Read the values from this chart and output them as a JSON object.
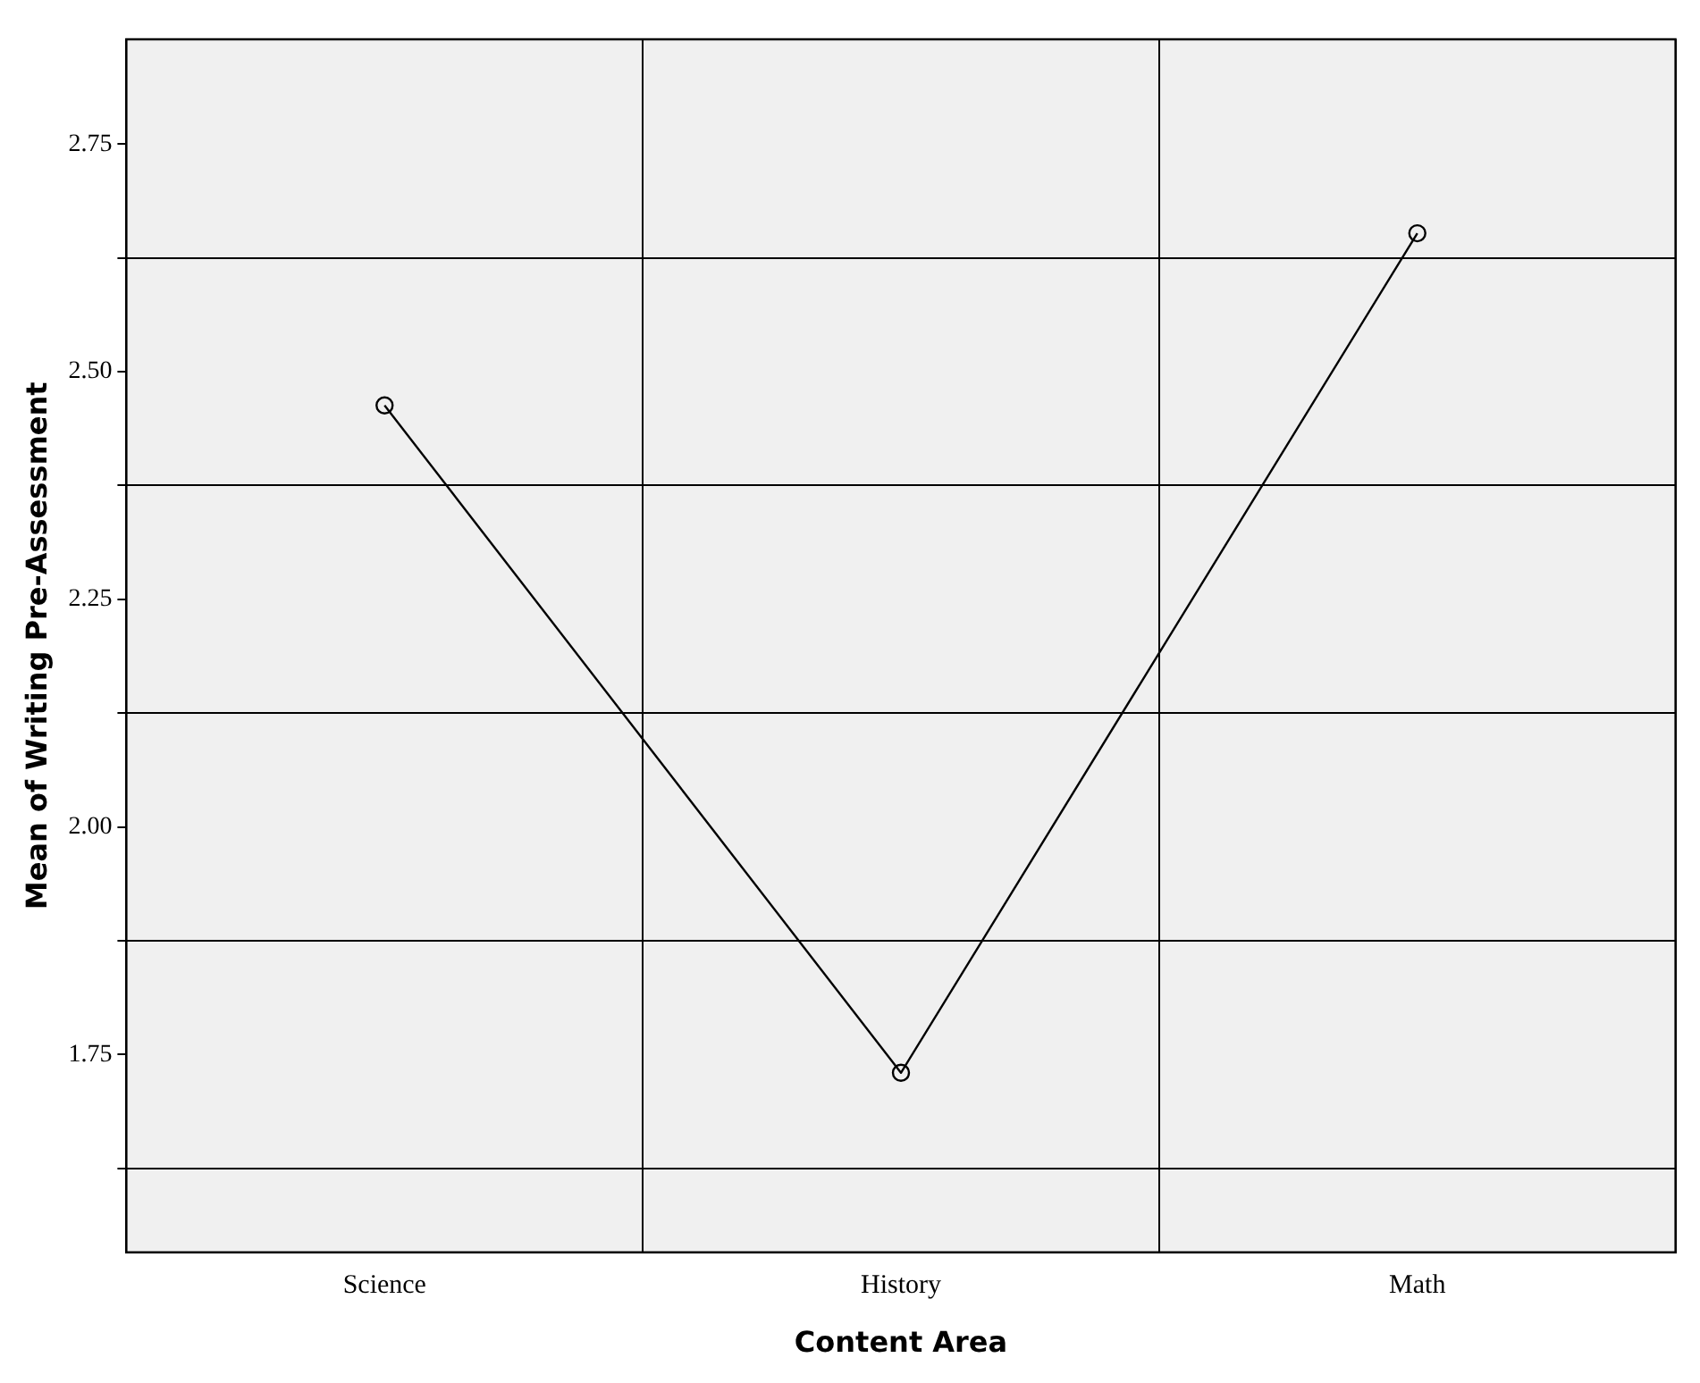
{
  "chart_data": {
    "type": "line",
    "xlabel": "Content Area",
    "ylabel": "Mean of Writing Pre-Assessment",
    "categories": [
      "Science",
      "History",
      "Math"
    ],
    "series": [
      {
        "color": "#000000",
        "values": [
          2.463,
          1.73,
          2.652
        ]
      }
    ],
    "ylim": [
      1.533,
      2.865
    ],
    "yticks": [
      {
        "value": 1.625,
        "label": null
      },
      1.75,
      {
        "value": 1.875,
        "label": null
      },
      {
        "value": 2.0,
        "label": "2.00"
      },
      {
        "value": 2.125,
        "label": null
      },
      2.25,
      {
        "value": 2.375,
        "label": null
      },
      {
        "value": 2.5,
        "label": "2.50"
      },
      {
        "value": 2.625,
        "label": null
      },
      2.75
    ],
    "grid": true,
    "legend": false,
    "marker": "circle",
    "line_style": "solid"
  }
}
